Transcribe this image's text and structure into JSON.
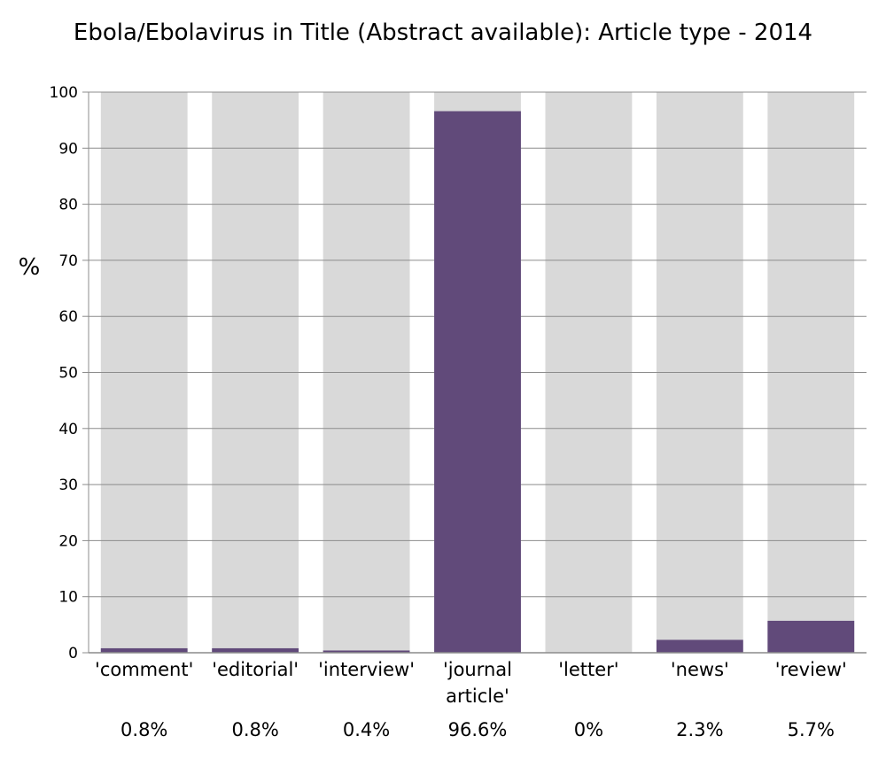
{
  "chart_data": {
    "type": "bar",
    "title": "Ebola/Ebolavirus in Title (Abstract available): Article type - 2014",
    "ylabel": "%",
    "xlabel": "",
    "ylim": [
      0,
      100
    ],
    "yticks": [
      0,
      10,
      20,
      30,
      40,
      50,
      60,
      70,
      80,
      90,
      100
    ],
    "grid": true,
    "categories": [
      [
        "'comment'"
      ],
      [
        "'editorial'"
      ],
      [
        "'interview'"
      ],
      [
        "'journal",
        "article'"
      ],
      [
        "'letter'"
      ],
      [
        "'news'"
      ],
      [
        "'review'"
      ]
    ],
    "values": [
      0.8,
      0.8,
      0.4,
      96.6,
      0,
      2.3,
      5.7
    ],
    "value_labels": [
      "0.8%",
      "0.8%",
      "0.4%",
      "96.6%",
      "0%",
      "2.3%",
      "5.7%"
    ],
    "background_value": 100,
    "colors": {
      "bar": "#614a7a",
      "background_bar": "#d9d9d9",
      "grid": "#8c8c8c"
    }
  }
}
